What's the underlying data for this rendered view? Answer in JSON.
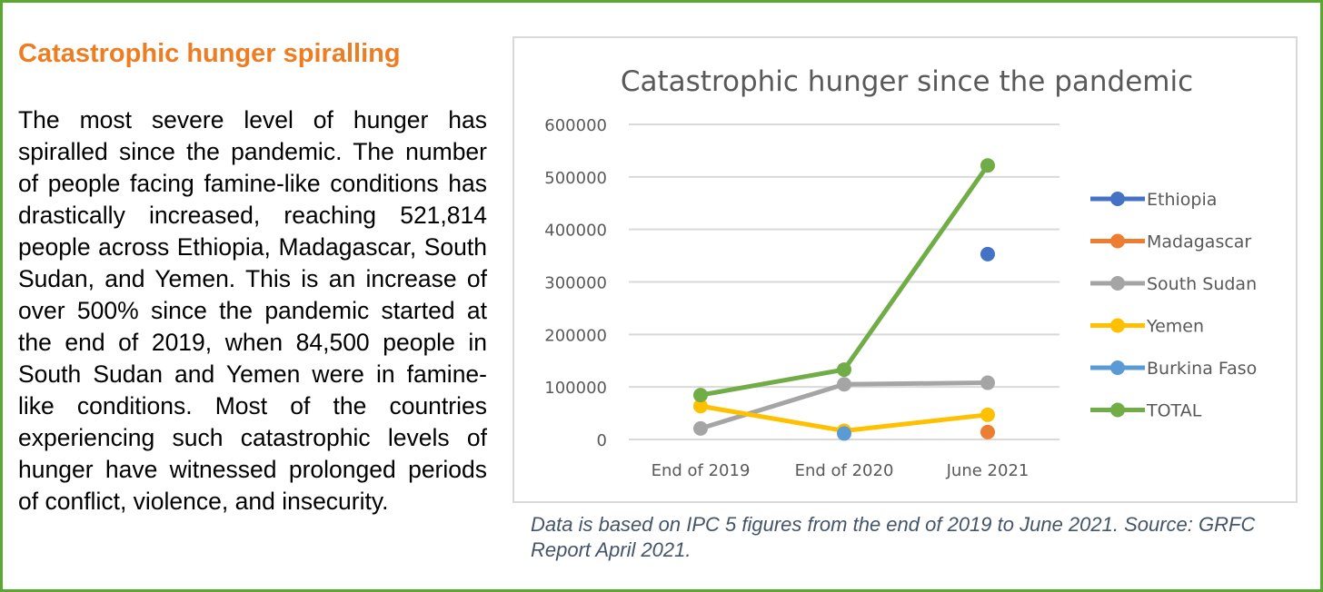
{
  "article": {
    "heading": "Catastrophic hunger spiralling",
    "body": "The most severe level of hunger has spiralled since the pandemic. The number of people facing famine-like conditions has drastically increased, reaching 521,814 people across Ethiopia, Madagascar, South Sudan, and Yemen.  This is an increase of over 500% since the pandemic started at the end of 2019, when 84,500 people in South Sudan and Yemen were in famine-like conditions. Most of the countries experiencing such catastrophic levels of hunger have witnessed prolonged periods of conflict, violence, and insecurity.",
    "caption": "Data is based on IPC 5 figures from the end of 2019 to June 2021. Source: GRFC Report April 2021."
  },
  "colors": {
    "border": "#5aa832",
    "heading": "#ee7d22",
    "caption": "#44546a"
  },
  "chart_data": {
    "type": "line",
    "title": "Catastrophic hunger since the pandemic",
    "categories": [
      "End of 2019",
      "End of 2020",
      "June 2021"
    ],
    "ylim": [
      0,
      600000
    ],
    "yticks": [
      0,
      100000,
      200000,
      300000,
      400000,
      500000,
      600000
    ],
    "ytick_labels": [
      "0",
      "100000",
      "200000",
      "300000",
      "400000",
      "500000",
      "600000"
    ],
    "grid": true,
    "legend_position": "right",
    "series": [
      {
        "name": "Ethiopia",
        "color": "#4472c4",
        "values": [
          null,
          null,
          353000
        ]
      },
      {
        "name": "Madagascar",
        "color": "#ed7d31",
        "values": [
          null,
          null,
          14000
        ]
      },
      {
        "name": "South Sudan",
        "color": "#a5a5a5",
        "values": [
          21000,
          105000,
          108000
        ]
      },
      {
        "name": "Yemen",
        "color": "#ffc000",
        "values": [
          63500,
          16500,
          47000
        ]
      },
      {
        "name": "Burkina Faso",
        "color": "#5b9bd5",
        "values": [
          null,
          11400,
          null
        ]
      },
      {
        "name": "TOTAL",
        "color": "#70ad47",
        "values": [
          84500,
          133000,
          521814
        ]
      }
    ]
  }
}
